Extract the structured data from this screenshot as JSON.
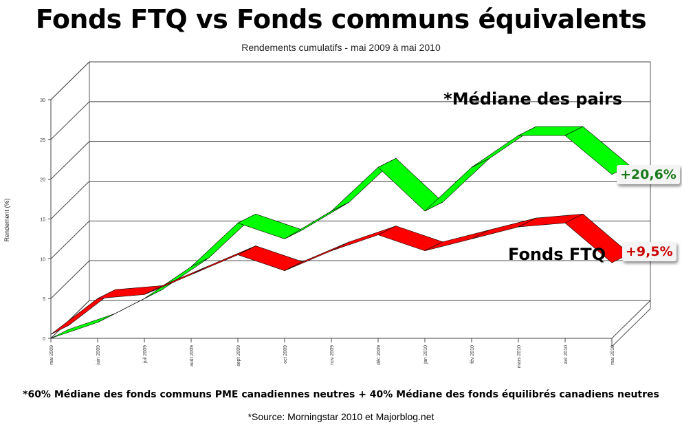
{
  "title": "Fonds FTQ vs Fonds communs équivalents",
  "subtitle": "Rendements cumulatifs - mai 2009 à mai 2010",
  "footnote": "*60% Médiane des fonds communs PME canadiennes neutres + 40% Médiane des fonds équilibrés canadiens neutres",
  "source": "*Source: Morningstar 2010 et Majorblog.net",
  "colors": {
    "peers": "#00ff00",
    "ftq": "#ff0000",
    "peers_label": "#1a7a1a",
    "ftq_label": "#cc0000"
  },
  "chart_data": {
    "type": "line",
    "ylabel": "Rendement (%)",
    "ylim": [
      0,
      30
    ],
    "yticks": [
      "0",
      "5",
      "10",
      "15",
      "20",
      "25",
      "30"
    ],
    "categories": [
      "mai 2009",
      "juin 2009",
      "juil 2009",
      "août 2009",
      "sept 2009",
      "oct 2009",
      "nov 2009",
      "déc 2009",
      "jan 2010",
      "fév 2010",
      "mars 2010",
      "avr 2010",
      "mai 2010"
    ],
    "series": [
      {
        "name": "*Médiane des pairs",
        "values": [
          0.0,
          2.0,
          5.0,
          9.0,
          14.5,
          12.5,
          16.0,
          21.5,
          16.0,
          21.5,
          25.5,
          25.5,
          20.6
        ]
      },
      {
        "name": "Fonds FTQ",
        "values": [
          0.5,
          5.0,
          5.5,
          8.0,
          10.5,
          8.5,
          11.0,
          13.0,
          11.0,
          12.5,
          14.0,
          14.5,
          9.5
        ]
      }
    ],
    "end_labels": [
      "+20,6%",
      "+9,5%"
    ],
    "grid": true,
    "style": "3d-ribbon"
  }
}
